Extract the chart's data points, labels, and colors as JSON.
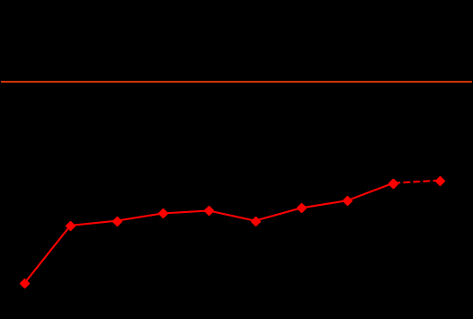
{
  "years": [
    1999,
    2000,
    2001,
    2002,
    2003,
    2004,
    2005,
    2006,
    2007,
    2008
  ],
  "values": [
    201,
    287,
    294,
    305,
    309,
    294,
    313,
    324,
    350,
    354
  ],
  "line_color": "#ff0000",
  "marker_color": "#ff0000",
  "background_color": "#000000",
  "hline_y": 500,
  "hline_color": "#cc3300",
  "ylim": [
    150,
    620
  ],
  "xlim": [
    1998.5,
    2008.7
  ],
  "fig_width": 5.26,
  "fig_height": 3.55,
  "dpi": 100
}
